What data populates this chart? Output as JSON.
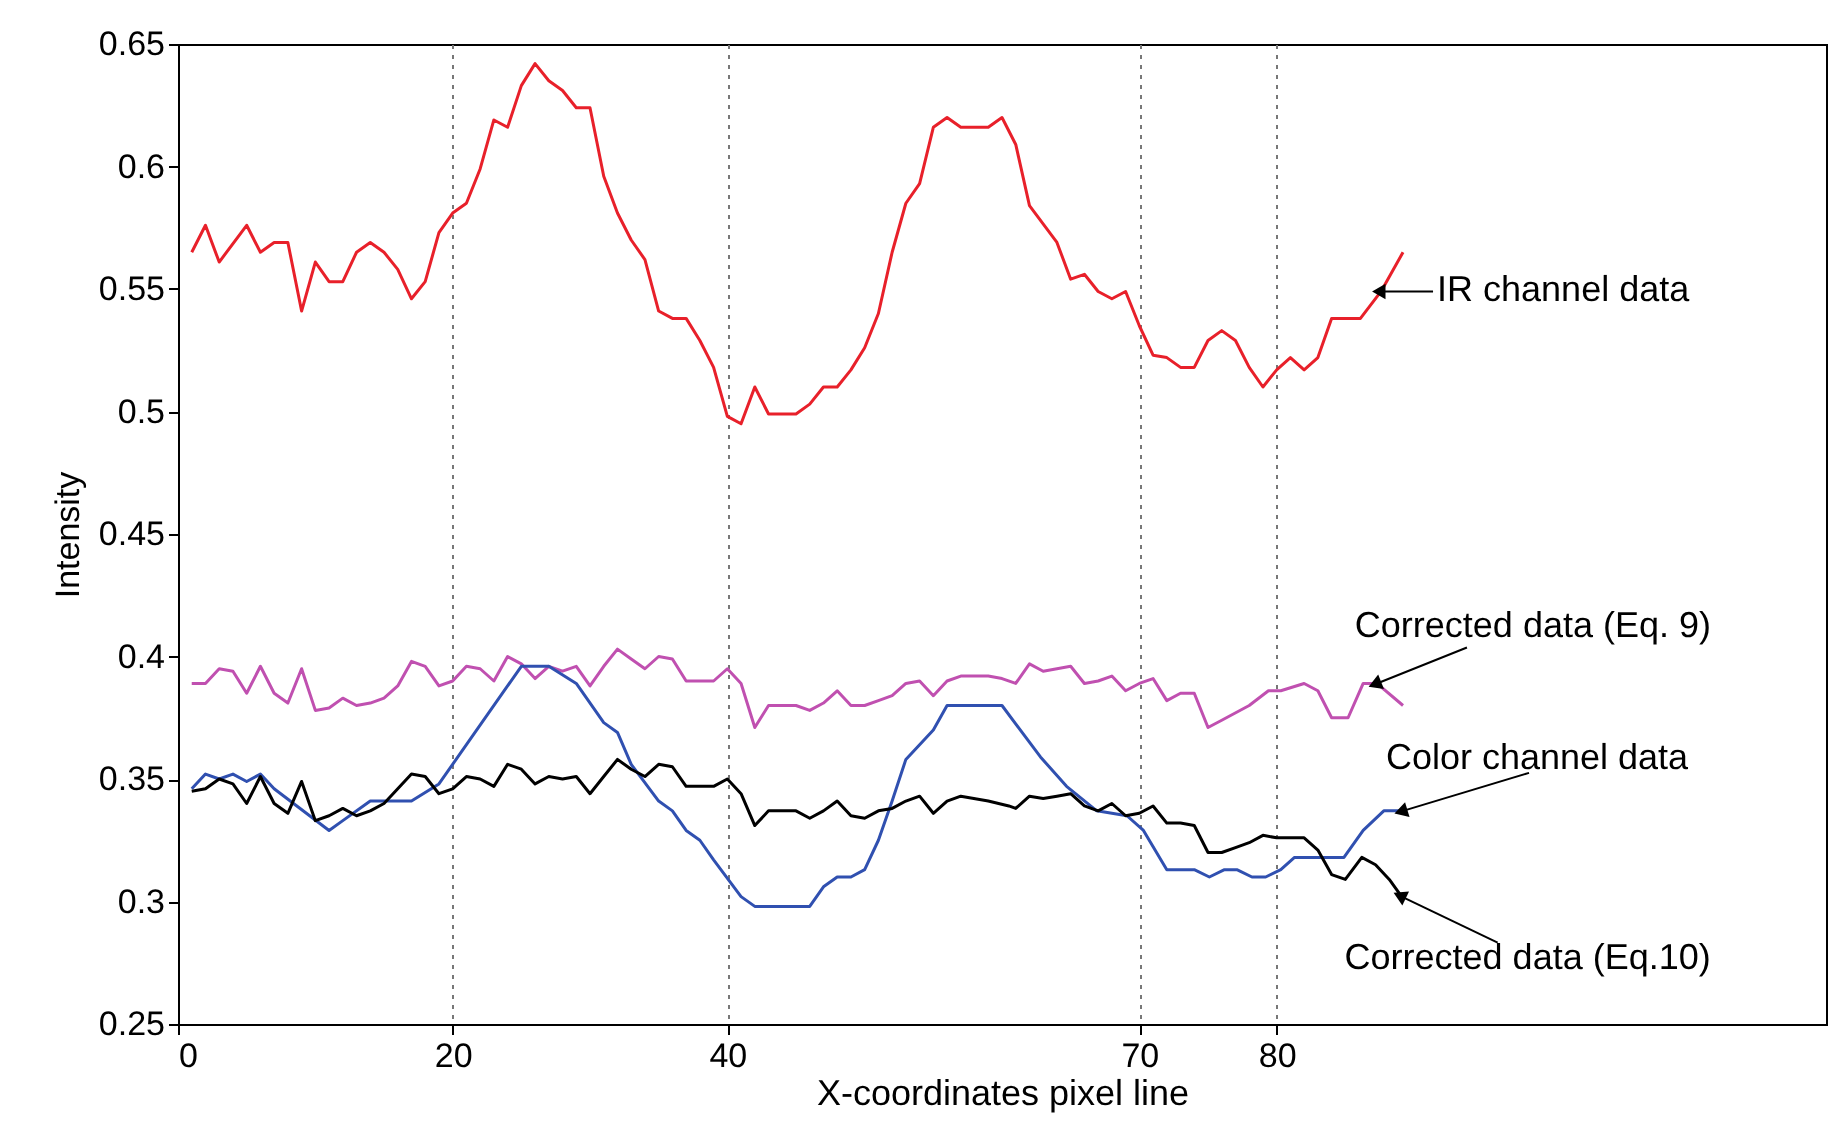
{
  "chart_data": {
    "type": "line",
    "xlabel": "X-coordinates pixel line",
    "ylabel": "Intensity",
    "xlim": [
      0,
      120
    ],
    "xticks": [
      0,
      20,
      40,
      70,
      80
    ],
    "ylim": [
      0.25,
      0.65
    ],
    "yticks": [
      0.25,
      0.3,
      0.35,
      0.4,
      0.45,
      0.5,
      0.55,
      0.6,
      0.65
    ],
    "grid": "x",
    "marker": "none",
    "line_style": "solid",
    "series": [
      {
        "name": "IR channel data",
        "color": "#e8202a",
        "x": [
          1,
          2,
          3,
          5,
          6,
          7,
          8,
          9,
          10,
          11,
          12,
          13,
          14,
          15,
          16,
          17,
          18,
          19,
          20,
          21,
          22,
          23,
          24,
          25,
          26,
          27,
          28,
          29,
          30,
          31,
          32,
          33,
          34,
          35,
          36,
          37,
          38,
          39,
          40,
          41,
          42,
          43,
          45,
          46,
          47,
          48,
          49,
          50,
          51,
          52,
          53,
          54,
          55,
          56,
          57,
          59,
          60,
          61,
          62,
          64,
          65,
          66,
          67,
          68,
          69,
          70,
          71,
          72,
          73,
          74,
          75,
          76,
          77,
          78,
          79,
          80,
          81,
          82,
          83,
          84,
          86.1,
          87.6,
          89.2
        ],
        "values": [
          0.565,
          0.576,
          0.561,
          0.576,
          0.565,
          0.569,
          0.569,
          0.541,
          0.561,
          0.553,
          0.553,
          0.565,
          0.569,
          0.565,
          0.558,
          0.546,
          0.553,
          0.573,
          0.581,
          0.585,
          0.599,
          0.619,
          0.616,
          0.633,
          0.642,
          0.635,
          0.631,
          0.624,
          0.624,
          0.596,
          0.581,
          0.57,
          0.562,
          0.541,
          0.538,
          0.538,
          0.529,
          0.518,
          0.498,
          0.495,
          0.51,
          0.499,
          0.499,
          0.503,
          0.51,
          0.51,
          0.517,
          0.526,
          0.54,
          0.565,
          0.585,
          0.593,
          0.616,
          0.62,
          0.616,
          0.616,
          0.62,
          0.609,
          0.584,
          0.569,
          0.554,
          0.556,
          0.549,
          0.546,
          0.549,
          0.535,
          0.523,
          0.522,
          0.518,
          0.518,
          0.529,
          0.533,
          0.529,
          0.518,
          0.51,
          0.517,
          0.522,
          0.517,
          0.522,
          0.538,
          0.538,
          0.549,
          0.565
        ]
      },
      {
        "name": "Corrected data (Eq. 9)",
        "color": "#c050b0",
        "x": [
          1,
          2,
          3,
          4,
          5,
          6,
          7,
          8,
          9,
          10,
          11,
          12,
          13,
          14,
          15,
          16,
          17,
          18,
          19,
          20,
          21,
          22,
          23,
          24,
          25,
          26,
          27,
          28,
          29,
          30,
          31,
          32,
          33,
          34,
          35,
          36,
          37,
          38,
          39,
          40,
          41,
          42,
          43,
          45,
          46,
          47,
          48,
          49,
          50,
          51,
          52,
          53,
          54,
          55,
          56,
          57,
          59,
          60,
          61,
          62,
          63,
          64,
          65,
          66,
          67,
          68,
          69,
          70,
          71,
          72,
          73,
          74,
          75,
          76,
          78,
          79.4,
          80.3,
          82,
          83,
          84,
          85.2,
          86.3,
          87.3,
          89.2
        ],
        "values": [
          0.389,
          0.389,
          0.395,
          0.394,
          0.385,
          0.396,
          0.385,
          0.381,
          0.395,
          0.378,
          0.379,
          0.383,
          0.38,
          0.381,
          0.383,
          0.388,
          0.398,
          0.396,
          0.388,
          0.39,
          0.396,
          0.395,
          0.39,
          0.4,
          0.397,
          0.391,
          0.396,
          0.394,
          0.396,
          0.388,
          0.396,
          0.403,
          0.399,
          0.395,
          0.4,
          0.399,
          0.39,
          0.39,
          0.39,
          0.395,
          0.389,
          0.371,
          0.38,
          0.38,
          0.378,
          0.381,
          0.386,
          0.38,
          0.38,
          0.382,
          0.384,
          0.389,
          0.39,
          0.384,
          0.39,
          0.392,
          0.392,
          0.391,
          0.389,
          0.397,
          0.394,
          0.395,
          0.396,
          0.389,
          0.39,
          0.392,
          0.386,
          0.389,
          0.391,
          0.382,
          0.385,
          0.385,
          0.371,
          0.374,
          0.38,
          0.386,
          0.386,
          0.389,
          0.386,
          0.375,
          0.375,
          0.389,
          0.389,
          0.38
        ]
      },
      {
        "name": "Color channel data",
        "color": "#3050b0",
        "x": [
          1,
          2,
          3,
          4,
          5,
          6,
          7,
          11,
          12,
          14,
          17,
          19,
          25,
          27,
          29,
          31,
          32,
          33,
          35,
          36,
          37,
          38,
          39,
          41,
          42,
          46,
          47,
          48,
          49,
          50,
          51,
          52,
          53,
          55,
          56,
          60,
          62.8,
          64.7,
          66.9,
          69.1,
          70.3,
          72,
          74,
          75.1,
          76.2,
          77.1,
          78.2,
          79.2,
          80.3,
          81.3,
          84.9,
          86.3,
          87.8,
          89.2
        ],
        "values": [
          0.346,
          0.352,
          0.35,
          0.352,
          0.349,
          0.352,
          0.346,
          0.329,
          0.333,
          0.341,
          0.341,
          0.348,
          0.396,
          0.396,
          0.389,
          0.373,
          0.369,
          0.356,
          0.341,
          0.337,
          0.329,
          0.325,
          0.317,
          0.302,
          0.298,
          0.298,
          0.306,
          0.31,
          0.31,
          0.313,
          0.325,
          0.341,
          0.358,
          0.37,
          0.38,
          0.38,
          0.359,
          0.347,
          0.337,
          0.335,
          0.329,
          0.313,
          0.313,
          0.31,
          0.313,
          0.313,
          0.31,
          0.31,
          0.313,
          0.318,
          0.318,
          0.329,
          0.337,
          0.337
        ]
      },
      {
        "name": "Corrected data (Eq.10)",
        "color": "#000000",
        "x": [
          1,
          2,
          3,
          4,
          5,
          6,
          7,
          8,
          9,
          10,
          11,
          12,
          13,
          14,
          15,
          16,
          17,
          18,
          19,
          20,
          21,
          22,
          23,
          24,
          25,
          26,
          27,
          28,
          29,
          30,
          31,
          32,
          33,
          34,
          35,
          36,
          37,
          38,
          39,
          40,
          41,
          42,
          43,
          45,
          46,
          47,
          48,
          49,
          50,
          51,
          52,
          53,
          54,
          55,
          56,
          57,
          59,
          60.5,
          61,
          62,
          63,
          64,
          65,
          66,
          67,
          68,
          69,
          70,
          71,
          72,
          73,
          74,
          75,
          76,
          77,
          78,
          79,
          80,
          82,
          83,
          84,
          85,
          86.2,
          87.2,
          88.2,
          89.1
        ],
        "values": [
          0.345,
          0.346,
          0.35,
          0.348,
          0.34,
          0.351,
          0.34,
          0.336,
          0.349,
          0.333,
          0.335,
          0.338,
          0.335,
          0.337,
          0.34,
          0.346,
          0.352,
          0.351,
          0.344,
          0.346,
          0.351,
          0.35,
          0.347,
          0.356,
          0.354,
          0.348,
          0.351,
          0.35,
          0.351,
          0.344,
          0.351,
          0.358,
          0.354,
          0.351,
          0.356,
          0.355,
          0.347,
          0.347,
          0.347,
          0.35,
          0.344,
          0.331,
          0.337,
          0.337,
          0.334,
          0.337,
          0.341,
          0.335,
          0.334,
          0.337,
          0.338,
          0.341,
          0.343,
          0.336,
          0.341,
          0.343,
          0.341,
          0.339,
          0.338,
          0.343,
          0.342,
          0.343,
          0.344,
          0.339,
          0.337,
          0.34,
          0.335,
          0.336,
          0.339,
          0.332,
          0.332,
          0.331,
          0.32,
          0.32,
          0.322,
          0.324,
          0.327,
          0.326,
          0.326,
          0.321,
          0.311,
          0.309,
          0.318,
          0.315,
          0.309,
          0.302
        ]
      }
    ]
  }
}
